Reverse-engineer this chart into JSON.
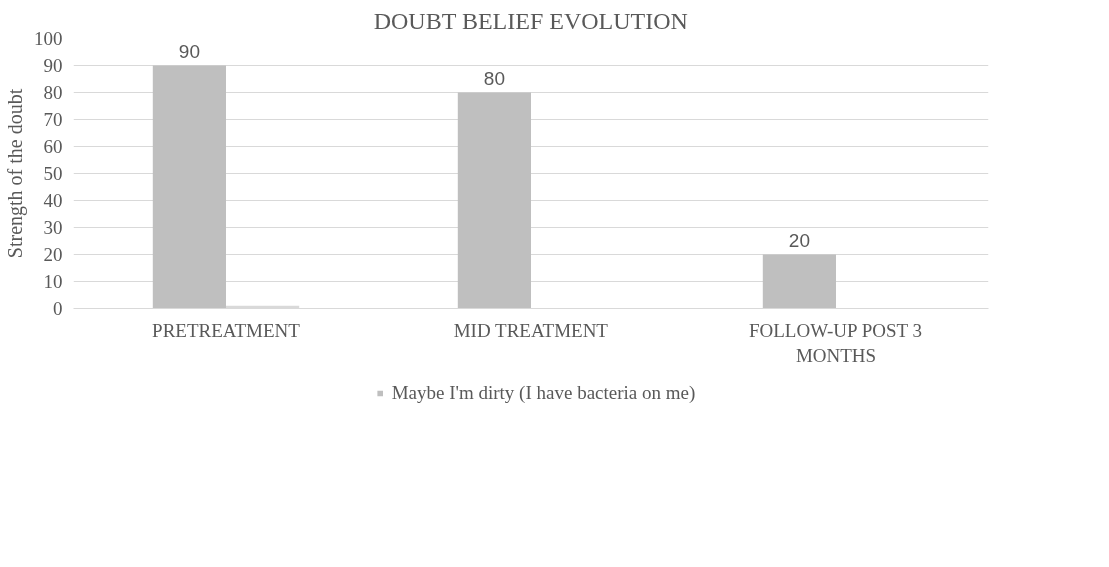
{
  "chart_data": {
    "type": "bar",
    "title": "DOUBT BELIEF EVOLUTION",
    "ylabel": "Strength of the doubt",
    "categories": [
      "PRETREATMENT",
      "MID TREATMENT",
      "FOLLOW-UP POST 3 MONTHS"
    ],
    "series": [
      {
        "name": "Maybe I'm dirty (I have bacteria on me)",
        "color": "#bfbfbf",
        "values": [
          90,
          80,
          20
        ],
        "value_labels": [
          "90",
          "80",
          "20"
        ]
      },
      {
        "color": "#d9d9d9",
        "values": [
          1,
          null,
          null
        ]
      }
    ],
    "ylim": [
      0,
      100
    ],
    "yticks": [
      0,
      10,
      20,
      30,
      40,
      50,
      60,
      70,
      80,
      90,
      100
    ],
    "grid": "y",
    "legend": "bottom"
  }
}
